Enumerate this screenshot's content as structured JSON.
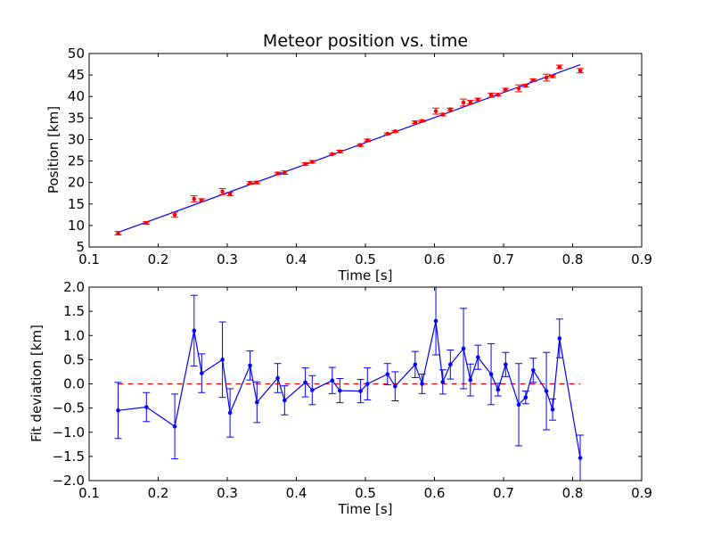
{
  "chart_data": [
    {
      "type": "scatter",
      "title": "Meteor position vs. time",
      "xlabel": "Time [s]",
      "ylabel": "Position [km]",
      "xlim": [
        0.1,
        0.9
      ],
      "ylim": [
        5,
        50
      ],
      "xticks": [
        "0.1",
        "0.2",
        "0.3",
        "0.4",
        "0.5",
        "0.6",
        "0.7",
        "0.8",
        "0.9"
      ],
      "yticks": [
        "5",
        "10",
        "15",
        "20",
        "25",
        "30",
        "35",
        "40",
        "45",
        "50"
      ],
      "grid": false,
      "colors": {
        "points": "#ff0000",
        "fit_line": "#0000ff",
        "error_bars": "#ff0000"
      },
      "series": [
        {
          "x": [
            0.142,
            0.183,
            0.224,
            0.252,
            0.263,
            0.293,
            0.304,
            0.333,
            0.343,
            0.373,
            0.383,
            0.413,
            0.423,
            0.452,
            0.463,
            0.493,
            0.503,
            0.532,
            0.543,
            0.572,
            0.582,
            0.602,
            0.612,
            0.623,
            0.642,
            0.652,
            0.663,
            0.682,
            0.692,
            0.703,
            0.722,
            0.732,
            0.743,
            0.762,
            0.771,
            0.781,
            0.811
          ],
          "y": [
            8.2,
            10.6,
            12.5,
            16.2,
            15.9,
            17.9,
            17.3,
            19.9,
            20.0,
            22.1,
            22.3,
            24.3,
            24.8,
            26.6,
            27.2,
            28.7,
            29.8,
            31.3,
            31.9,
            34.0,
            34.3,
            36.6,
            35.8,
            37.0,
            38.6,
            38.7,
            39.3,
            40.3,
            40.4,
            41.6,
            41.9,
            42.5,
            43.8,
            44.4,
            44.7,
            46.9,
            46.0
          ],
          "yerr": [
            0.4,
            0.3,
            0.6,
            0.7,
            0.3,
            0.7,
            0.4,
            0.3,
            0.3,
            0.3,
            0.4,
            0.3,
            0.3,
            0.2,
            0.3,
            0.3,
            0.3,
            0.2,
            0.2,
            0.3,
            0.2,
            0.7,
            0.3,
            0.3,
            0.8,
            0.4,
            0.3,
            0.5,
            0.3,
            0.3,
            0.8,
            0.3,
            0.3,
            0.8,
            0.3,
            0.4,
            0.5
          ]
        }
      ],
      "fit_line": {
        "x": [
          0.142,
          0.811
        ],
        "y": [
          8.4,
          47.4
        ]
      }
    },
    {
      "type": "line",
      "xlabel": "Time [s]",
      "ylabel": "Fit deviation [km]",
      "xlim": [
        0.1,
        0.9
      ],
      "ylim": [
        -2.0,
        2.0
      ],
      "xticks": [
        "0.1",
        "0.2",
        "0.3",
        "0.4",
        "0.5",
        "0.6",
        "0.7",
        "0.8",
        "0.9"
      ],
      "yticks": [
        "−2.0",
        "−1.5",
        "−1.0",
        "−0.5",
        "0.0",
        "0.5",
        "1.0",
        "1.5",
        "2.0"
      ],
      "grid": false,
      "colors": {
        "line": "#0000ff",
        "zero_line": "#ff0000"
      },
      "series": [
        {
          "x": [
            0.142,
            0.183,
            0.224,
            0.252,
            0.263,
            0.293,
            0.304,
            0.333,
            0.343,
            0.373,
            0.383,
            0.413,
            0.423,
            0.452,
            0.463,
            0.493,
            0.503,
            0.532,
            0.543,
            0.572,
            0.582,
            0.602,
            0.612,
            0.623,
            0.642,
            0.652,
            0.663,
            0.682,
            0.692,
            0.703,
            0.722,
            0.732,
            0.743,
            0.762,
            0.771,
            0.781,
            0.811
          ],
          "y": [
            -0.55,
            -0.48,
            -0.88,
            1.1,
            0.22,
            0.5,
            -0.6,
            0.38,
            -0.38,
            0.12,
            -0.34,
            0.03,
            -0.13,
            0.07,
            -0.14,
            -0.15,
            0.0,
            0.2,
            -0.05,
            0.4,
            0.0,
            1.3,
            0.04,
            0.4,
            0.73,
            0.08,
            0.55,
            0.2,
            -0.12,
            0.4,
            -0.43,
            -0.28,
            0.28,
            -0.15,
            -0.53,
            0.94,
            -1.53
          ],
          "yerr": [
            0.58,
            0.3,
            0.67,
            0.73,
            0.4,
            0.78,
            0.5,
            0.3,
            0.42,
            0.3,
            0.3,
            0.3,
            0.3,
            0.27,
            0.25,
            0.24,
            0.33,
            0.22,
            0.3,
            0.27,
            0.2,
            0.7,
            0.25,
            0.3,
            0.83,
            0.33,
            0.25,
            0.63,
            0.13,
            0.25,
            0.85,
            0.13,
            0.25,
            0.8,
            0.22,
            0.4,
            0.47
          ]
        }
      ],
      "reference_line": {
        "x": [
          0.142,
          0.811
        ],
        "y": [
          0.0,
          0.0
        ]
      }
    }
  ]
}
